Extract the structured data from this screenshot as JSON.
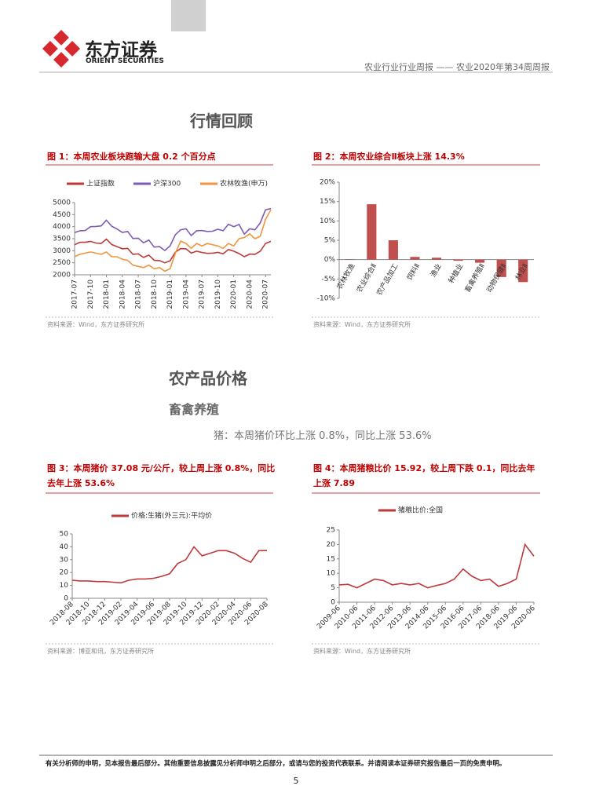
{
  "header": {
    "logo_name": "东方证券",
    "logo_english": "ORIENT SECURITIES",
    "title": "农业行业行业周报 —— 农业2020年第34周周报"
  },
  "sections": [
    {
      "title": "行情回顾"
    },
    {
      "title": "农产品价格",
      "subtitle": "畜禽养殖",
      "summary": "猪：本周猪价环比上涨 0.8%，同比上涨 53.6%"
    }
  ],
  "footer": {
    "disclaimer": "有关分析师的申明，见本报告最后部分。其他重要信息披露见分析师申明之后部分，或请与您的投资代表联系。并请阅读本证券研究报告最后一页的免责申明。",
    "page": "5"
  },
  "chart_data": [
    {
      "type": "line",
      "title": "图 1：本周农业板块跑输大盘 0.2 个百分点",
      "source": "资料来源：Wind，东方证券研究所",
      "categories": [
        "2017-07",
        null,
        null,
        "2017-10",
        null,
        null,
        "2018-01",
        null,
        null,
        "2018-04",
        null,
        null,
        "2018-07",
        null,
        null,
        "2018-10",
        null,
        null,
        "2019-01",
        null,
        null,
        "2019-04",
        null,
        null,
        "2019-07",
        null,
        null,
        "2019-10",
        null,
        null,
        "2020-01",
        null,
        null,
        "2020-04",
        null,
        null,
        "2020-07",
        null
      ],
      "series": [
        {
          "name": "上证指数",
          "color": "#be3a3a",
          "values": [
            3250,
            3350,
            3350,
            3390,
            3320,
            3300,
            3480,
            3260,
            3170,
            3080,
            3100,
            2850,
            2870,
            2720,
            2820,
            2600,
            2590,
            2500,
            2580,
            2940,
            3090,
            3080,
            2900,
            2980,
            2930,
            2890,
            2900,
            2930,
            2870,
            3050,
            2980,
            2880,
            2750,
            2860,
            2850,
            2980,
            3300,
            3390
          ]
        },
        {
          "name": "沪深300",
          "color": "#7e5bb5",
          "values": [
            3750,
            3830,
            3840,
            4000,
            4010,
            4030,
            4270,
            4020,
            3900,
            3760,
            3800,
            3510,
            3520,
            3330,
            3440,
            3150,
            3170,
            3010,
            3200,
            3670,
            3870,
            3910,
            3630,
            3830,
            3840,
            3800,
            3810,
            3890,
            3830,
            4100,
            4000,
            4090,
            3690,
            3910,
            3870,
            4160,
            4700,
            4750
          ]
        },
        {
          "name": "农林牧渔(申万)",
          "color": "#f0953f",
          "values": [
            2750,
            2850,
            2900,
            2950,
            2900,
            2850,
            2950,
            2750,
            2750,
            2650,
            2600,
            2400,
            2350,
            2300,
            2400,
            2250,
            2300,
            2150,
            2250,
            2900,
            3400,
            3300,
            3100,
            3300,
            3200,
            3300,
            3250,
            3200,
            3100,
            3300,
            3200,
            3500,
            3550,
            3700,
            3500,
            3600,
            4300,
            4700
          ]
        }
      ],
      "ylim": [
        2000,
        5000
      ],
      "yticks": [
        2000,
        2500,
        3000,
        3500,
        4000,
        4500,
        5000
      ]
    },
    {
      "type": "bar",
      "title": "图 2：本周农业综合Ⅱ板块上涨 14.3%",
      "source": "资料来源：Wind，东方证券研究所",
      "categories": [
        "农林牧渔",
        "农业综合Ⅱ",
        "农产品加工",
        "饲料Ⅱ",
        "渔业",
        "种植业",
        "畜禽养殖Ⅱ",
        "动物保健Ⅱ",
        "林业Ⅱ"
      ],
      "values": [
        0.1,
        14.3,
        5.0,
        0.7,
        0.5,
        -0.3,
        -0.8,
        -4.5,
        -5.8
      ],
      "color": "#c0504d",
      "ylim": [
        -10,
        20
      ],
      "yticks": [
        {
          "value": -10,
          "label": "-10%"
        },
        {
          "value": -5,
          "label": "-5%"
        },
        {
          "value": 0,
          "label": "0%"
        },
        {
          "value": 5,
          "label": "5%"
        },
        {
          "value": 10,
          "label": "10%"
        },
        {
          "value": 15,
          "label": "15%"
        },
        {
          "value": 20,
          "label": "20%"
        }
      ]
    },
    {
      "type": "line",
      "title": "图 3：本周猪价 37.08 元/公斤，较上周上涨 0.8%，同比去年上涨 53.6%",
      "source": "资料来源：博亚和讯，东方证券研究所",
      "categories": [
        "2018-08",
        null,
        "2018-10",
        null,
        "2018-12",
        null,
        "2019-02",
        null,
        "2019-04",
        null,
        "2019-06",
        null,
        "2019-08",
        null,
        "2019-10",
        null,
        "2019-12",
        null,
        "2020-02",
        null,
        "2020-04",
        null,
        "2020-06",
        null,
        "2020-08"
      ],
      "series": [
        {
          "name": "价格:生猪(外三元):平均价",
          "color": "#be3a3a",
          "values": [
            14,
            13.5,
            13.5,
            13,
            13,
            12.5,
            12,
            14,
            15,
            15,
            15.5,
            17,
            19,
            27,
            30,
            40,
            33,
            35,
            37,
            37,
            35,
            31,
            28,
            37,
            37.08
          ]
        }
      ],
      "ylim": [
        0,
        50
      ],
      "yticks": [
        0,
        10,
        20,
        30,
        40,
        50
      ]
    },
    {
      "type": "line",
      "title": "图 4：本周猪粮比价 15.92，较上周下跌 0.1，同比去年上涨 7.89",
      "source": "资料来源：Wind，东方证券研究所",
      "categories": [
        "2009-06",
        null,
        "2010-06",
        null,
        "2011-06",
        null,
        "2012-06",
        null,
        "2013-06",
        null,
        "2014-06",
        null,
        "2015-06",
        null,
        "2016-06",
        null,
        "2017-06",
        null,
        "2018-06",
        null,
        "2019-06",
        null,
        "2020-06"
      ],
      "series": [
        {
          "name": "猪粮比价:全国",
          "color": "#be3a3a",
          "values": [
            6,
            6.2,
            5,
            6.5,
            8,
            7.5,
            6,
            6.5,
            6,
            6.5,
            5,
            5.8,
            6.5,
            8,
            11.5,
            9,
            7.5,
            8,
            5.5,
            6.5,
            8,
            20,
            15.92
          ]
        }
      ],
      "ylim": [
        0,
        25
      ],
      "yticks": [
        0,
        5,
        10,
        15,
        20,
        25
      ]
    }
  ]
}
